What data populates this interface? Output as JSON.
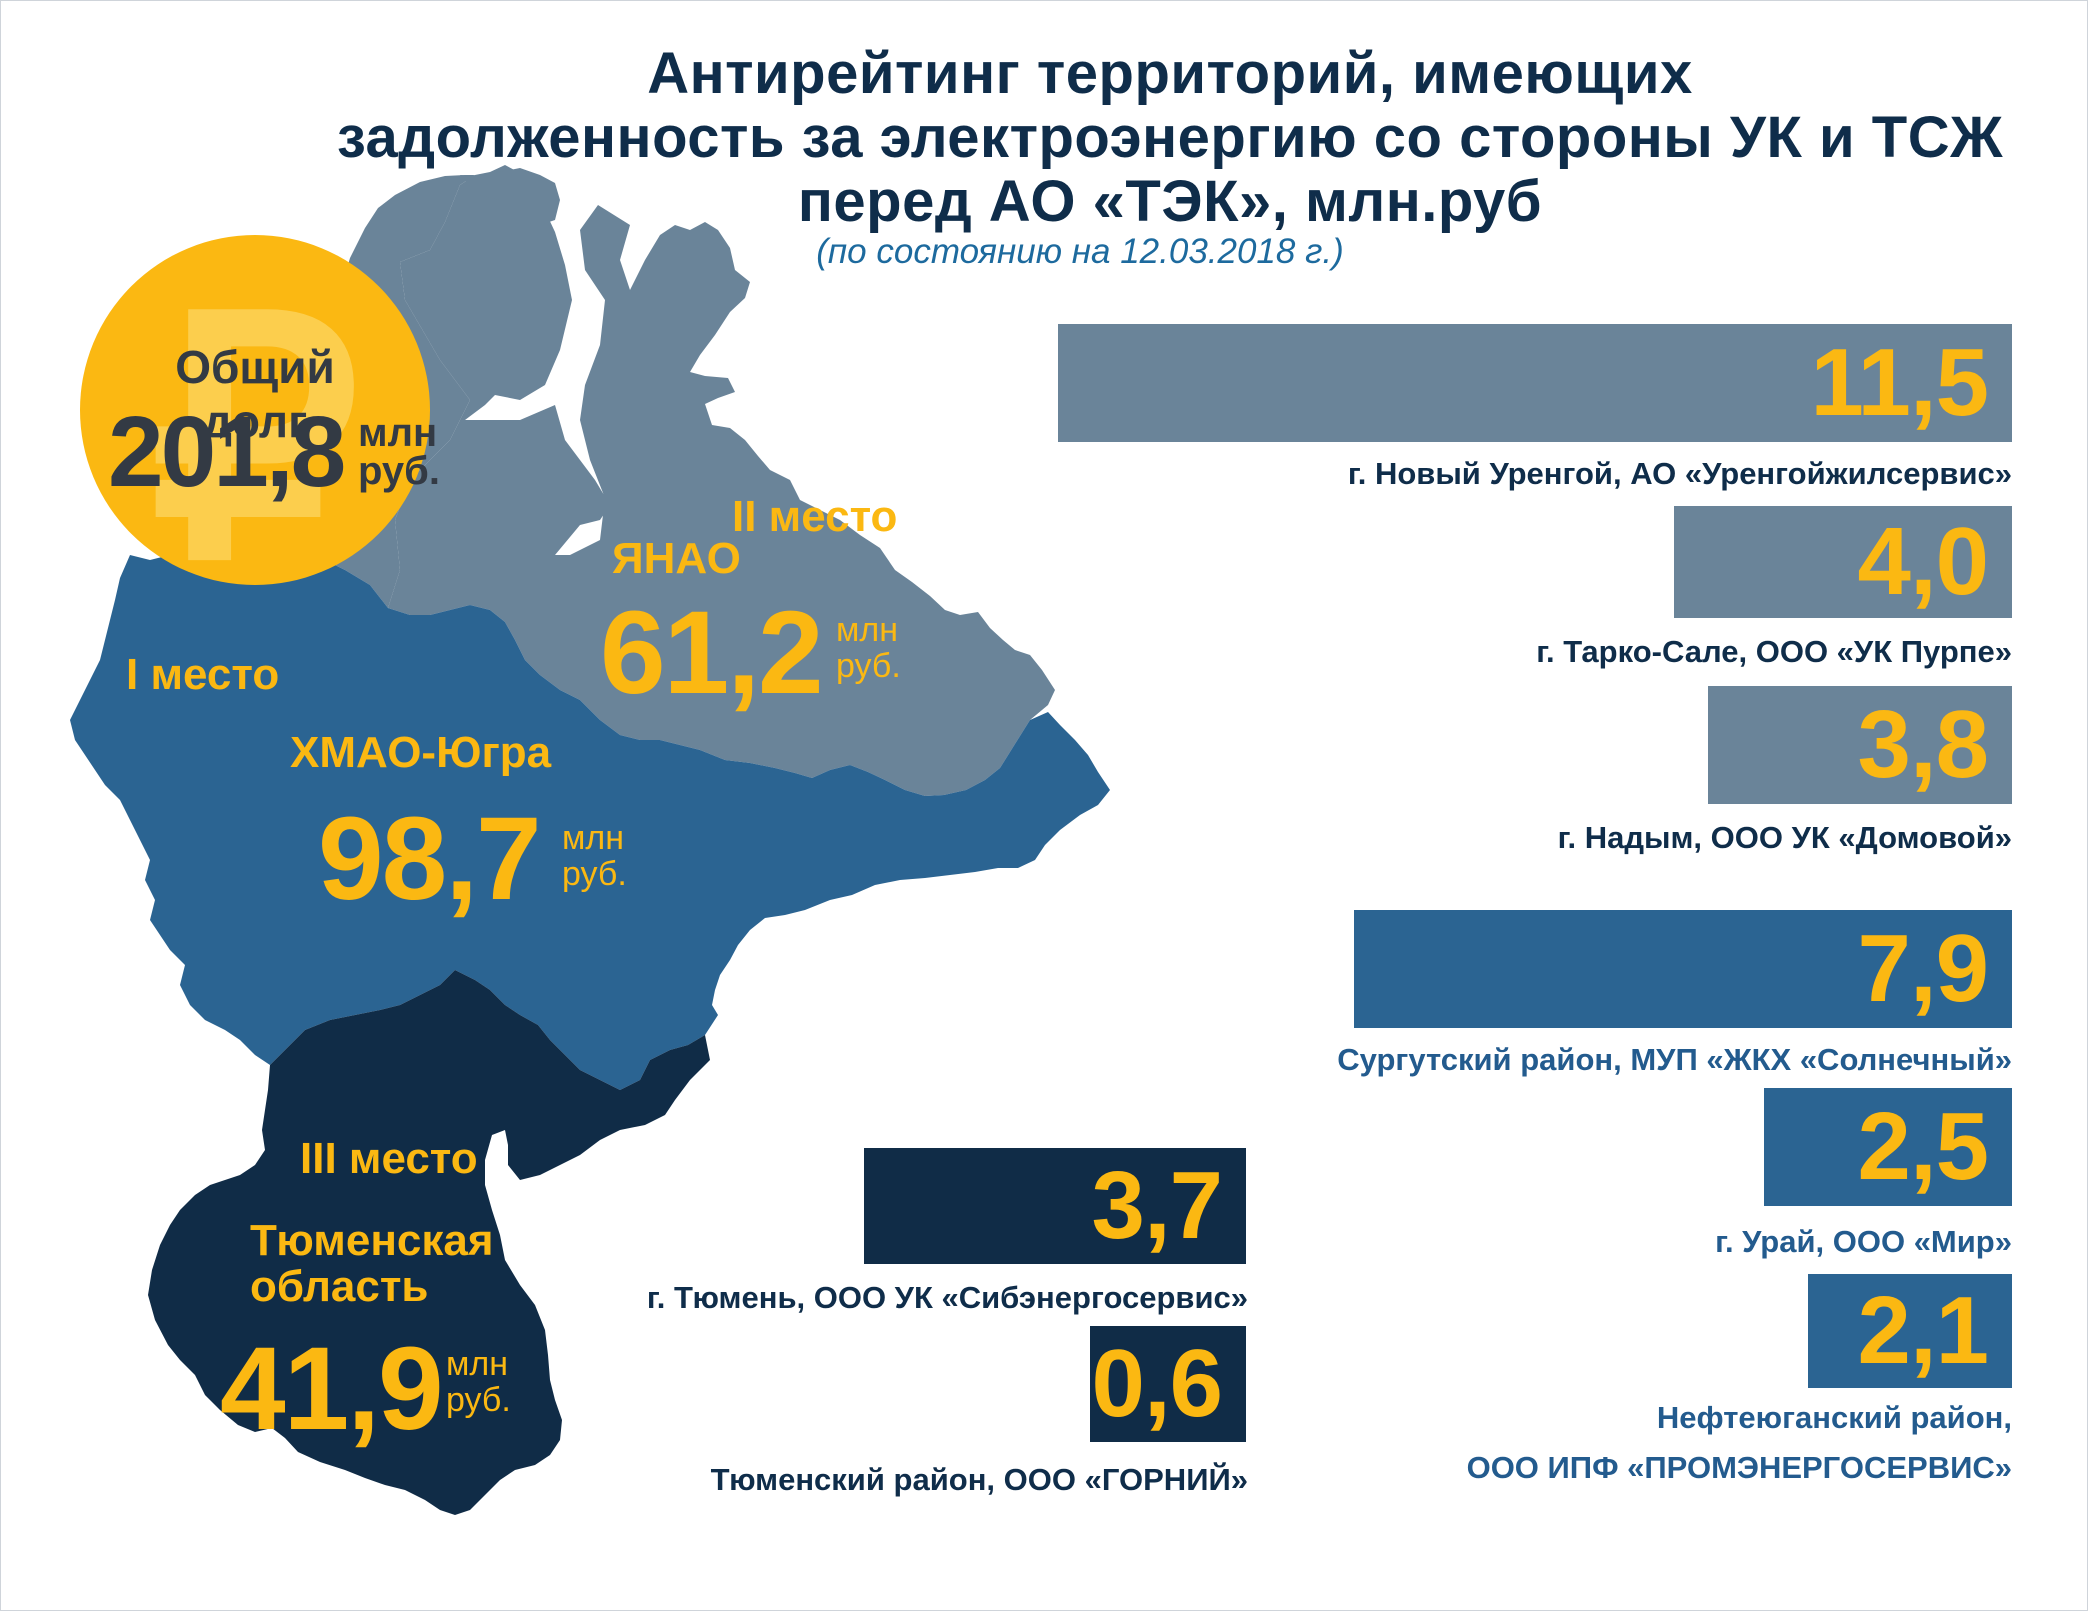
{
  "title": "Антирейтинг территорий, имеющих задолженность за электроэнергию со стороны УК и ТСЖ перед АО «ТЭК», млн.руб",
  "title_lines": [
    "Антирейтинг территорий, имеющих",
    "задолженность за электроэнергию со стороны УК и ТСЖ",
    "перед АО «ТЭК», млн.руб"
  ],
  "subtitle": "(по состоянию на 12.03.2018 г.)",
  "total": {
    "label": "Общий долг",
    "value": "201,8",
    "unit_line1": "млн",
    "unit_line2": "руб.",
    "currency_symbol": "₽"
  },
  "regions": {
    "hmao": {
      "rank": "I место",
      "name": "ХМАО-Югра",
      "value": "98,7",
      "unit_line1": "млн",
      "unit_line2": "руб."
    },
    "yanao": {
      "rank": "II место",
      "name": "ЯНАО",
      "value": "61,2",
      "unit_line1": "млн",
      "unit_line2": "руб."
    },
    "tyumen": {
      "rank": "III место",
      "name_line1": "Тюменская",
      "name_line2": "область",
      "value": "41,9",
      "unit_line1": "млн",
      "unit_line2": "руб."
    }
  },
  "colors": {
    "yanao": "#6a8499",
    "hmao": "#2b6492",
    "tyumen": "#102c47",
    "accent": "#fbb812",
    "title": "#0f2d4a",
    "subtitle": "#1d6a9e"
  },
  "chart_data": {
    "type": "bar",
    "title": "Антирейтинг территорий, имеющих задолженность за электроэнергию со стороны УК и ТСЖ перед АО «ТЭК», млн.руб",
    "subtitle": "(по состоянию на 12.03.2018 г.)",
    "series": [
      {
        "name": "ЯНАО",
        "categories": [
          "г. Новый Уренгой, АО «Уренгойжилсервис»",
          "г. Тарко-Сале, ООО «УК Пурпе»",
          "г. Надым, ООО УК «Домовой»"
        ],
        "values": [
          11.5,
          4.0,
          3.8
        ],
        "labels": [
          "11,5",
          "4,0",
          "3,8"
        ]
      },
      {
        "name": "ХМАО-Югра",
        "categories": [
          "Сургутский район, МУП «ЖКХ «Солнечный»",
          "г. Урай, ООО «Мир»",
          "Нефтеюганский район, ООО ИПФ «ПРОМЭНЕРГОСЕРВИС»"
        ],
        "values": [
          7.9,
          2.5,
          2.1
        ],
        "labels": [
          "7,9",
          "2,5",
          "2,1"
        ]
      },
      {
        "name": "Тюменская область",
        "categories": [
          "г. Тюмень, ООО УК «Сибэнергосервис»",
          "Тюменский район, ООО «ГОРНИЙ»"
        ],
        "values": [
          3.7,
          0.6
        ],
        "labels": [
          "3,7",
          "0,6"
        ]
      }
    ]
  },
  "bars": {
    "b1": {
      "value": "11,5",
      "label": "г. Новый Уренгой, АО «Уренгойжилсервис»"
    },
    "b2": {
      "value": "4,0",
      "label": "г. Тарко-Сале, ООО «УК Пурпе»"
    },
    "b3": {
      "value": "3,8",
      "label": "г. Надым, ООО УК «Домовой»"
    },
    "b4": {
      "value": "7,9",
      "label": "Сургутский район, МУП «ЖКХ «Солнечный»"
    },
    "b5": {
      "value": "2,5",
      "label": "г. Урай, ООО «Мир»"
    },
    "b6": {
      "value": "2,1",
      "label_line1": "Нефтеюганский район,",
      "label_line2": "ООО ИПФ «ПРОМЭНЕРГОСЕРВИС»"
    },
    "b7": {
      "value": "3,7",
      "label": "г. Тюмень, ООО УК «Сибэнергосервис»"
    },
    "b8": {
      "value": "0,6",
      "label": "Тюменский район, ООО «ГОРНИЙ»"
    }
  }
}
